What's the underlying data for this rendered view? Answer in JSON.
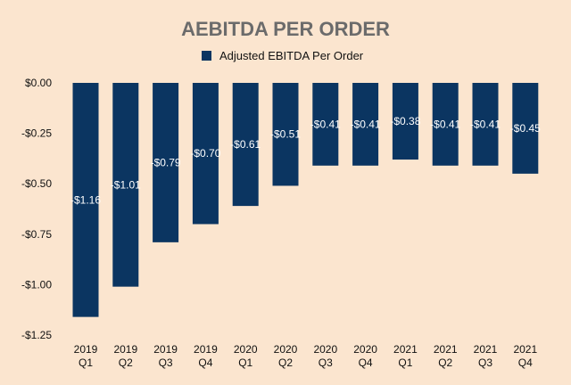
{
  "chart_data": {
    "type": "bar",
    "title": "AEBITDA PER ORDER",
    "xlabel": "",
    "ylabel": "",
    "legend_position": "top-center",
    "grid": false,
    "categories": [
      [
        "2019",
        "Q1"
      ],
      [
        "2019",
        "Q2"
      ],
      [
        "2019",
        "Q3"
      ],
      [
        "2019",
        "Q4"
      ],
      [
        "2020",
        "Q1"
      ],
      [
        "2020",
        "Q2"
      ],
      [
        "2020",
        "Q3"
      ],
      [
        "2020",
        "Q4"
      ],
      [
        "2021",
        "Q1"
      ],
      [
        "2021",
        "Q2"
      ],
      [
        "2021",
        "Q3"
      ],
      [
        "2021",
        "Q4"
      ]
    ],
    "series": [
      {
        "name": "Adjusted EBITDA Per Order",
        "color": "#0b3561",
        "values": [
          -1.16,
          -1.01,
          -0.79,
          -0.7,
          -0.61,
          -0.51,
          -0.41,
          -0.41,
          -0.38,
          -0.41,
          -0.41,
          -0.45
        ],
        "labels": [
          "-$1.16",
          "-$1.01",
          "-$0.79",
          "-$0.70",
          "-$0.61",
          "-$0.51",
          "-$0.41",
          "-$0.41",
          "-$0.38",
          "-$0.41",
          "-$0.41",
          "-$0.45"
        ]
      }
    ],
    "ylim": [
      -1.25,
      0
    ],
    "yticks": [
      0,
      -0.25,
      -0.5,
      -0.75,
      -1.0,
      -1.25
    ],
    "ytick_labels": [
      "$0.00",
      "-$0.25",
      "-$0.50",
      "-$0.75",
      "-$1.00",
      "-$1.25"
    ],
    "colors": {
      "background": "#fbe5cf",
      "title": "#6b6b6b",
      "text": "#111111"
    }
  }
}
